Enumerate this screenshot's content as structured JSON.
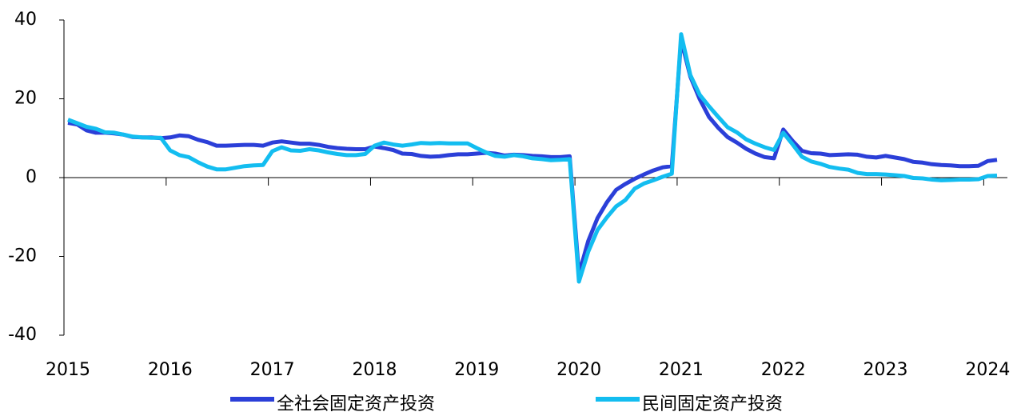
{
  "chart_data": {
    "type": "line",
    "categories": [
      "2015",
      null,
      null,
      null,
      null,
      null,
      null,
      null,
      null,
      null,
      null,
      "2016",
      null,
      null,
      null,
      null,
      null,
      null,
      null,
      null,
      null,
      null,
      "2017",
      null,
      null,
      null,
      null,
      null,
      null,
      null,
      null,
      null,
      null,
      "2018",
      null,
      null,
      null,
      null,
      null,
      null,
      null,
      null,
      null,
      null,
      "2019",
      null,
      null,
      null,
      null,
      null,
      null,
      null,
      null,
      null,
      null,
      "2020",
      null,
      null,
      null,
      null,
      null,
      null,
      null,
      null,
      null,
      null,
      "2021",
      null,
      null,
      null,
      null,
      null,
      null,
      null,
      null,
      null,
      null,
      "2022",
      null,
      null,
      null,
      null,
      null,
      null,
      null,
      null,
      null,
      null,
      "2023",
      null,
      null,
      null,
      null,
      null,
      null,
      null,
      null,
      null,
      null,
      "2024",
      null
    ],
    "series": [
      {
        "name": "全社会固定资产投资",
        "color": "#2b3fd8",
        "values": [
          13.9,
          13.5,
          12.0,
          11.4,
          11.4,
          11.2,
          10.9,
          10.3,
          10.2,
          10.2,
          10.0,
          10.2,
          10.7,
          10.5,
          9.6,
          9.0,
          8.1,
          8.1,
          8.2,
          8.3,
          8.3,
          8.1,
          8.9,
          9.2,
          8.9,
          8.6,
          8.6,
          8.3,
          7.8,
          7.5,
          7.3,
          7.2,
          7.2,
          7.9,
          7.5,
          7.0,
          6.1,
          6.0,
          5.5,
          5.3,
          5.4,
          5.7,
          5.9,
          5.9,
          6.1,
          6.3,
          6.1,
          5.6,
          5.8,
          5.7,
          5.5,
          5.4,
          5.2,
          5.2,
          5.4,
          -24.5,
          -16.1,
          -10.3,
          -6.3,
          -3.1,
          -1.6,
          -0.3,
          0.8,
          1.8,
          2.6,
          2.9,
          35.0,
          25.6,
          19.9,
          15.4,
          12.6,
          10.3,
          8.9,
          7.3,
          6.1,
          5.2,
          4.9,
          12.2,
          9.3,
          6.8,
          6.2,
          6.1,
          5.7,
          5.8,
          5.9,
          5.8,
          5.3,
          5.1,
          5.5,
          5.1,
          4.7,
          4.0,
          3.8,
          3.4,
          3.2,
          3.1,
          2.9,
          2.9,
          3.0,
          4.2,
          4.5
        ]
      },
      {
        "name": "民间固定资产投资",
        "color": "#13bdf0",
        "values": [
          14.7,
          13.8,
          12.9,
          12.4,
          11.5,
          11.4,
          10.9,
          10.4,
          10.2,
          10.1,
          10.1,
          6.9,
          5.7,
          5.2,
          3.9,
          2.8,
          2.1,
          2.1,
          2.5,
          2.9,
          3.1,
          3.2,
          6.7,
          7.7,
          6.9,
          6.8,
          7.2,
          6.9,
          6.4,
          6.0,
          5.7,
          5.7,
          6.0,
          8.1,
          8.9,
          8.4,
          8.1,
          8.4,
          8.8,
          8.7,
          8.8,
          8.7,
          8.7,
          8.7,
          7.5,
          6.4,
          5.5,
          5.3,
          5.7,
          5.4,
          4.9,
          4.7,
          4.4,
          4.5,
          4.7,
          -26.4,
          -18.8,
          -13.3,
          -10.1,
          -7.3,
          -5.7,
          -2.8,
          -1.5,
          -0.7,
          0.2,
          1.0,
          36.4,
          26.0,
          21.0,
          18.1,
          15.4,
          12.8,
          11.5,
          9.7,
          8.6,
          7.7,
          7.0,
          11.4,
          8.4,
          5.3,
          4.1,
          3.5,
          2.7,
          2.3,
          2.0,
          1.2,
          0.9,
          0.9,
          0.8,
          0.6,
          0.4,
          -0.1,
          -0.2,
          -0.5,
          -0.7,
          -0.6,
          -0.5,
          -0.5,
          -0.4,
          0.4,
          0.5
        ]
      }
    ],
    "ylim": [
      -40,
      40
    ],
    "yticks": [
      40,
      20,
      0,
      -20,
      -40
    ],
    "legend": "bottom"
  }
}
